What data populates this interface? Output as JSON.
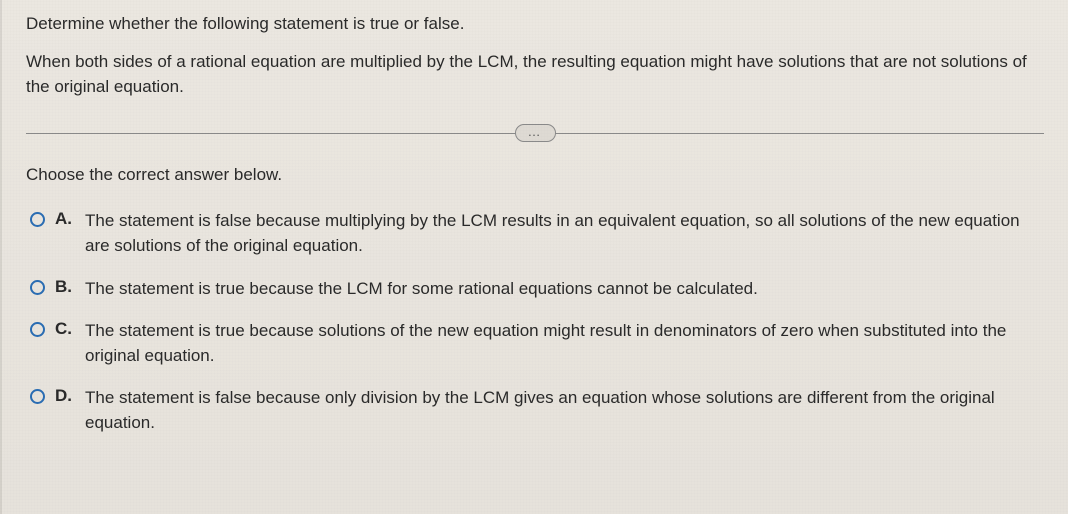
{
  "prompt": "Determine whether the following statement is true or false.",
  "statement": "When both sides of a rational equation are multiplied by the LCM, the resulting equation might have solutions that are not solutions of the original equation.",
  "ellipsis": "…",
  "chooseLine": "Choose the correct answer below.",
  "options": [
    {
      "letter": "A.",
      "text": "The statement is false because multiplying by the LCM results in an equivalent equation, so all solutions of the new equation are solutions of the original equation."
    },
    {
      "letter": "B.",
      "text": "The statement is true because the LCM for some rational equations cannot be calculated."
    },
    {
      "letter": "C.",
      "text": "The statement is true because solutions of the new equation might result in denominators of zero when substituted into the original equation."
    },
    {
      "letter": "D.",
      "text": "The statement is false because only division by the LCM gives an equation whose solutions are different from the original equation."
    }
  ],
  "colors": {
    "background": "#e8e4dd",
    "text": "#2a2a2a",
    "radioBorder": "#2a6db3",
    "divider": "#8a8a8a"
  },
  "typography": {
    "bodyFontSize": 17,
    "fontFamily": "Arial"
  }
}
